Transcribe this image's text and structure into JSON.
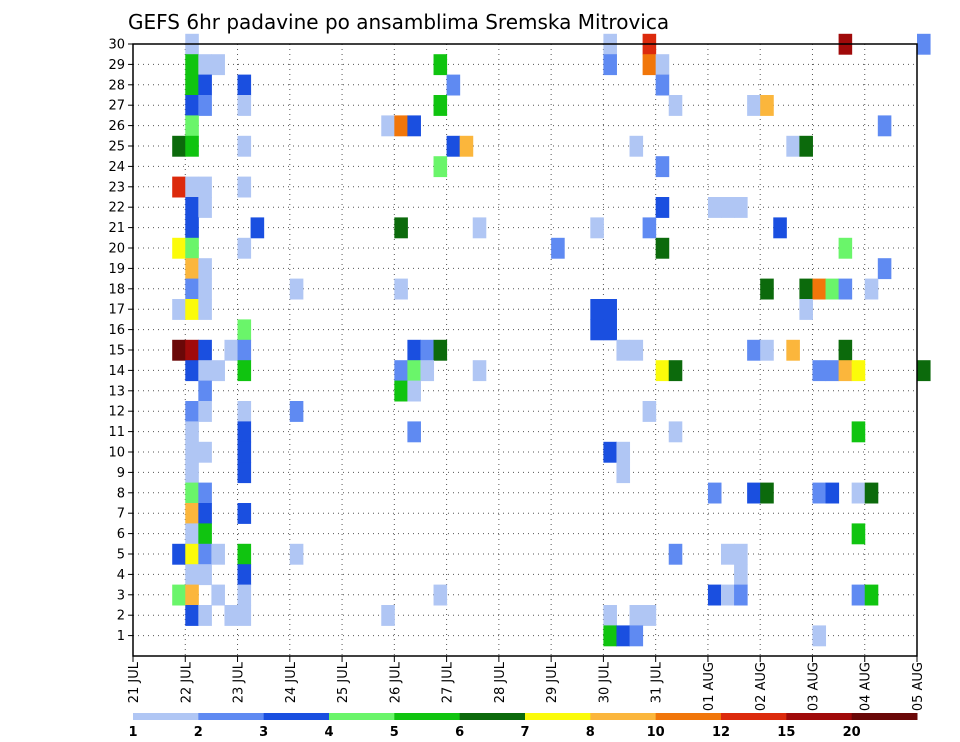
{
  "chart_data": {
    "type": "heatmap",
    "title": "GEFS 6hr padavine po ansamblima Sremska Mitrovica",
    "xlabel": "",
    "ylabel": "",
    "x_ticks": [
      "21 JUL",
      "22 JUL",
      "23 JUL",
      "24 JUL",
      "25 JUL",
      "26 JUL",
      "27 JUL",
      "28 JUL",
      "29 JUL",
      "30 JUL",
      "31 JUL",
      "01 AUG",
      "02 AUG",
      "03 AUG",
      "04 AUG",
      "05 AUG"
    ],
    "y_ticks": [
      "1",
      "2",
      "3",
      "4",
      "5",
      "6",
      "7",
      "8",
      "9",
      "10",
      "11",
      "12",
      "13",
      "14",
      "15",
      "16",
      "17",
      "18",
      "19",
      "20",
      "21",
      "22",
      "23",
      "24",
      "25",
      "26",
      "27",
      "28",
      "29",
      "30"
    ],
    "x_range_steps": [
      0,
      60
    ],
    "y_range": [
      0,
      30
    ],
    "step_hours": 6,
    "grid": true,
    "legend_position": "bottom",
    "legend": {
      "labels": [
        "1",
        "2",
        "3",
        "4",
        "5",
        "6",
        "7",
        "8",
        "10",
        "12",
        "15",
        "20"
      ],
      "colors": [
        "#b0c6f4",
        "#5f8af2",
        "#1a4fe0",
        "#6af56a",
        "#10c410",
        "#0c6a0c",
        "#fbfb0a",
        "#fbb63c",
        "#f1760a",
        "#dc2a0c",
        "#a00a0a",
        "#6a0808"
      ]
    },
    "cells": [
      [
        4,
        30,
        0
      ],
      [
        36,
        30,
        0
      ],
      [
        39,
        30,
        9
      ],
      [
        54,
        30,
        10
      ],
      [
        60,
        30,
        1
      ],
      [
        4,
        29,
        4
      ],
      [
        5,
        29,
        0
      ],
      [
        6,
        29,
        0
      ],
      [
        23,
        29,
        4
      ],
      [
        36,
        29,
        1
      ],
      [
        39,
        29,
        8
      ],
      [
        40,
        29,
        0
      ],
      [
        4,
        28,
        4
      ],
      [
        5,
        28,
        2
      ],
      [
        8,
        28,
        2
      ],
      [
        24,
        28,
        1
      ],
      [
        40,
        28,
        1
      ],
      [
        4,
        27,
        2
      ],
      [
        5,
        27,
        1
      ],
      [
        8,
        27,
        0
      ],
      [
        23,
        27,
        4
      ],
      [
        41,
        27,
        0
      ],
      [
        47,
        27,
        0
      ],
      [
        48,
        27,
        7
      ],
      [
        4,
        26,
        3
      ],
      [
        19,
        26,
        0
      ],
      [
        20,
        26,
        8
      ],
      [
        21,
        26,
        2
      ],
      [
        57,
        26,
        1
      ],
      [
        3,
        25,
        5
      ],
      [
        4,
        25,
        4
      ],
      [
        8,
        25,
        0
      ],
      [
        24,
        25,
        2
      ],
      [
        25,
        25,
        7
      ],
      [
        38,
        25,
        0
      ],
      [
        50,
        25,
        0
      ],
      [
        51,
        25,
        5
      ],
      [
        23,
        24,
        3
      ],
      [
        40,
        24,
        1
      ],
      [
        3,
        23,
        9
      ],
      [
        4,
        23,
        0
      ],
      [
        5,
        23,
        0
      ],
      [
        8,
        23,
        0
      ],
      [
        4,
        22,
        2
      ],
      [
        5,
        22,
        0
      ],
      [
        40,
        22,
        2
      ],
      [
        44,
        22,
        0
      ],
      [
        45,
        22,
        0
      ],
      [
        46,
        22,
        0
      ],
      [
        4,
        21,
        2
      ],
      [
        9,
        21,
        2
      ],
      [
        20,
        21,
        5
      ],
      [
        26,
        21,
        0
      ],
      [
        35,
        21,
        0
      ],
      [
        39,
        21,
        1
      ],
      [
        49,
        21,
        2
      ],
      [
        3,
        20,
        6
      ],
      [
        4,
        20,
        3
      ],
      [
        8,
        20,
        0
      ],
      [
        32,
        20,
        1
      ],
      [
        40,
        20,
        5
      ],
      [
        54,
        20,
        3
      ],
      [
        4,
        19,
        7
      ],
      [
        5,
        19,
        0
      ],
      [
        57,
        19,
        1
      ],
      [
        4,
        18,
        1
      ],
      [
        5,
        18,
        0
      ],
      [
        12,
        18,
        0
      ],
      [
        20,
        18,
        0
      ],
      [
        48,
        18,
        5
      ],
      [
        51,
        18,
        5
      ],
      [
        52,
        18,
        8
      ],
      [
        53,
        18,
        3
      ],
      [
        54,
        18,
        1
      ],
      [
        56,
        18,
        0
      ],
      [
        3,
        17,
        0
      ],
      [
        4,
        17,
        6
      ],
      [
        5,
        17,
        0
      ],
      [
        35,
        17,
        2
      ],
      [
        36,
        17,
        2
      ],
      [
        51,
        17,
        0
      ],
      [
        8,
        16,
        3
      ],
      [
        35,
        16,
        2
      ],
      [
        36,
        16,
        2
      ],
      [
        3,
        15,
        11
      ],
      [
        4,
        15,
        10
      ],
      [
        5,
        15,
        2
      ],
      [
        7,
        15,
        0
      ],
      [
        8,
        15,
        1
      ],
      [
        21,
        15,
        2
      ],
      [
        22,
        15,
        1
      ],
      [
        23,
        15,
        5
      ],
      [
        37,
        15,
        0
      ],
      [
        38,
        15,
        0
      ],
      [
        47,
        15,
        1
      ],
      [
        48,
        15,
        0
      ],
      [
        50,
        15,
        7
      ],
      [
        54,
        15,
        5
      ],
      [
        4,
        14,
        2
      ],
      [
        5,
        14,
        0
      ],
      [
        6,
        14,
        0
      ],
      [
        8,
        14,
        4
      ],
      [
        20,
        14,
        1
      ],
      [
        21,
        14,
        3
      ],
      [
        22,
        14,
        0
      ],
      [
        26,
        14,
        0
      ],
      [
        40,
        14,
        6
      ],
      [
        41,
        14,
        5
      ],
      [
        52,
        14,
        1
      ],
      [
        53,
        14,
        1
      ],
      [
        54,
        14,
        7
      ],
      [
        55,
        14,
        6
      ],
      [
        60,
        14,
        5
      ],
      [
        5,
        13,
        1
      ],
      [
        20,
        13,
        4
      ],
      [
        21,
        13,
        0
      ],
      [
        4,
        12,
        1
      ],
      [
        5,
        12,
        0
      ],
      [
        8,
        12,
        0
      ],
      [
        12,
        12,
        1
      ],
      [
        39,
        12,
        0
      ],
      [
        4,
        11,
        0
      ],
      [
        8,
        11,
        2
      ],
      [
        21,
        11,
        1
      ],
      [
        41,
        11,
        0
      ],
      [
        55,
        11,
        4
      ],
      [
        4,
        10,
        0
      ],
      [
        5,
        10,
        0
      ],
      [
        8,
        10,
        2
      ],
      [
        36,
        10,
        2
      ],
      [
        37,
        10,
        0
      ],
      [
        4,
        9,
        0
      ],
      [
        8,
        9,
        2
      ],
      [
        37,
        9,
        0
      ],
      [
        4,
        8,
        3
      ],
      [
        5,
        8,
        1
      ],
      [
        44,
        8,
        1
      ],
      [
        47,
        8,
        2
      ],
      [
        48,
        8,
        5
      ],
      [
        52,
        8,
        1
      ],
      [
        53,
        8,
        2
      ],
      [
        55,
        8,
        0
      ],
      [
        56,
        8,
        5
      ],
      [
        4,
        7,
        7
      ],
      [
        5,
        7,
        2
      ],
      [
        8,
        7,
        2
      ],
      [
        4,
        6,
        0
      ],
      [
        5,
        6,
        4
      ],
      [
        55,
        6,
        4
      ],
      [
        3,
        5,
        2
      ],
      [
        4,
        5,
        6
      ],
      [
        5,
        5,
        1
      ],
      [
        6,
        5,
        0
      ],
      [
        8,
        5,
        4
      ],
      [
        12,
        5,
        0
      ],
      [
        41,
        5,
        1
      ],
      [
        45,
        5,
        0
      ],
      [
        46,
        5,
        0
      ],
      [
        4,
        4,
        0
      ],
      [
        5,
        4,
        0
      ],
      [
        8,
        4,
        2
      ],
      [
        46,
        4,
        0
      ],
      [
        3,
        3,
        3
      ],
      [
        4,
        3,
        7
      ],
      [
        6,
        3,
        0
      ],
      [
        8,
        3,
        0
      ],
      [
        23,
        3,
        0
      ],
      [
        44,
        3,
        2
      ],
      [
        45,
        3,
        0
      ],
      [
        46,
        3,
        1
      ],
      [
        55,
        3,
        1
      ],
      [
        56,
        3,
        4
      ],
      [
        4,
        2,
        2
      ],
      [
        5,
        2,
        0
      ],
      [
        7,
        2,
        0
      ],
      [
        8,
        2,
        0
      ],
      [
        19,
        2,
        0
      ],
      [
        36,
        2,
        0
      ],
      [
        38,
        2,
        0
      ],
      [
        39,
        2,
        0
      ],
      [
        36,
        1,
        4
      ],
      [
        37,
        1,
        2
      ],
      [
        38,
        1,
        1
      ],
      [
        52,
        1,
        0
      ]
    ]
  }
}
